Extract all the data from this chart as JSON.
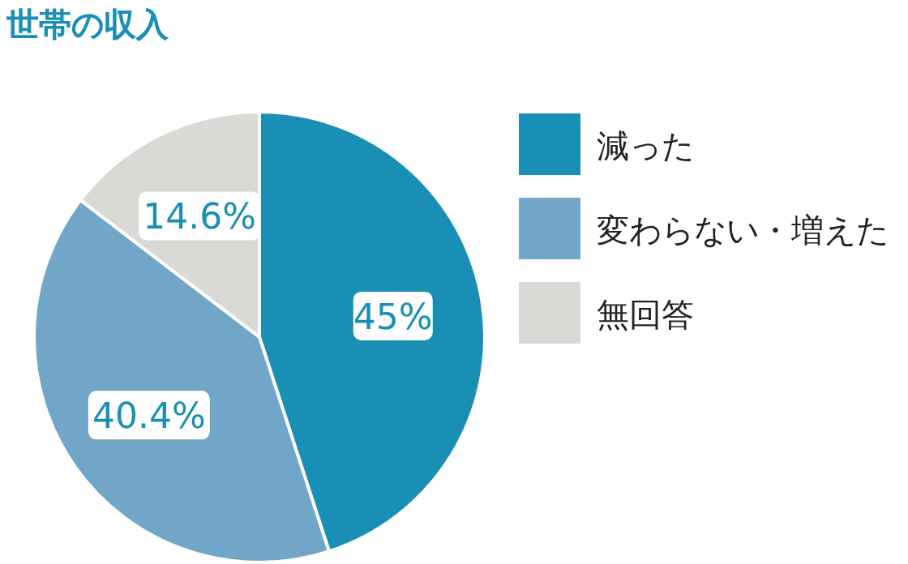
{
  "chart_data": {
    "type": "pie",
    "title": "世帯の収入",
    "categories": [
      "減った",
      "変わらない・増えた",
      "無回答"
    ],
    "values": [
      45,
      40.4,
      14.6
    ],
    "colors": [
      "#1a8fb5",
      "#72a6c9",
      "#d9d9d6"
    ],
    "value_labels": [
      "45%",
      "40.4%",
      "14.6%"
    ],
    "legend": "right"
  }
}
